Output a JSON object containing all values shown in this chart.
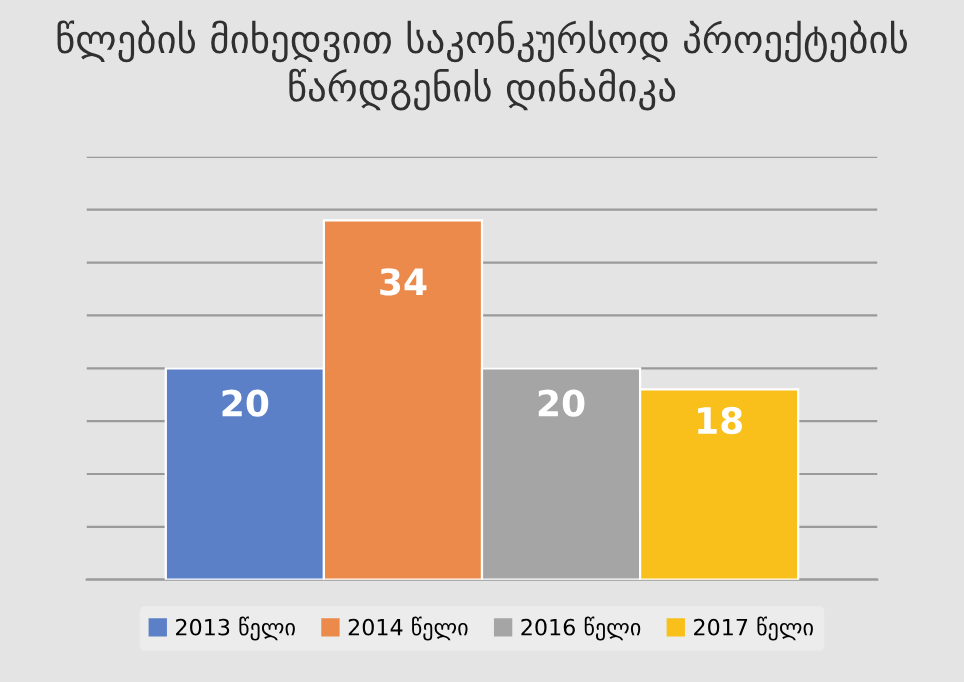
{
  "chart_data": {
    "type": "bar",
    "title": "წლების მიხედვით საკონკურსოდ პროექტების წარდგენის დინამიკა",
    "categories": [
      null
    ],
    "series": [
      {
        "name": "2013 წელი",
        "color": "#5b80c8",
        "values": [
          20
        ]
      },
      {
        "name": "2014 წელი",
        "color": "#ec8a4c",
        "values": [
          34
        ]
      },
      {
        "name": "2016 წელი",
        "color": "#a5a5a5",
        "values": [
          20
        ]
      },
      {
        "name": "2017 წელი",
        "color": "#f9c01c",
        "values": [
          18
        ]
      }
    ],
    "ylim": [
      0,
      40
    ],
    "yticks": [
      {
        "value": 0,
        "label": null
      },
      {
        "value": 5,
        "label": null
      },
      {
        "value": 10,
        "label": null
      },
      {
        "value": 15,
        "label": null
      },
      {
        "value": 20,
        "label": null
      },
      {
        "value": 25,
        "label": null
      },
      {
        "value": 30,
        "label": null
      },
      {
        "value": 35,
        "label": null
      },
      {
        "value": 40,
        "label": null
      }
    ],
    "grid": "y",
    "data_labels": true,
    "legend": "bottom"
  }
}
